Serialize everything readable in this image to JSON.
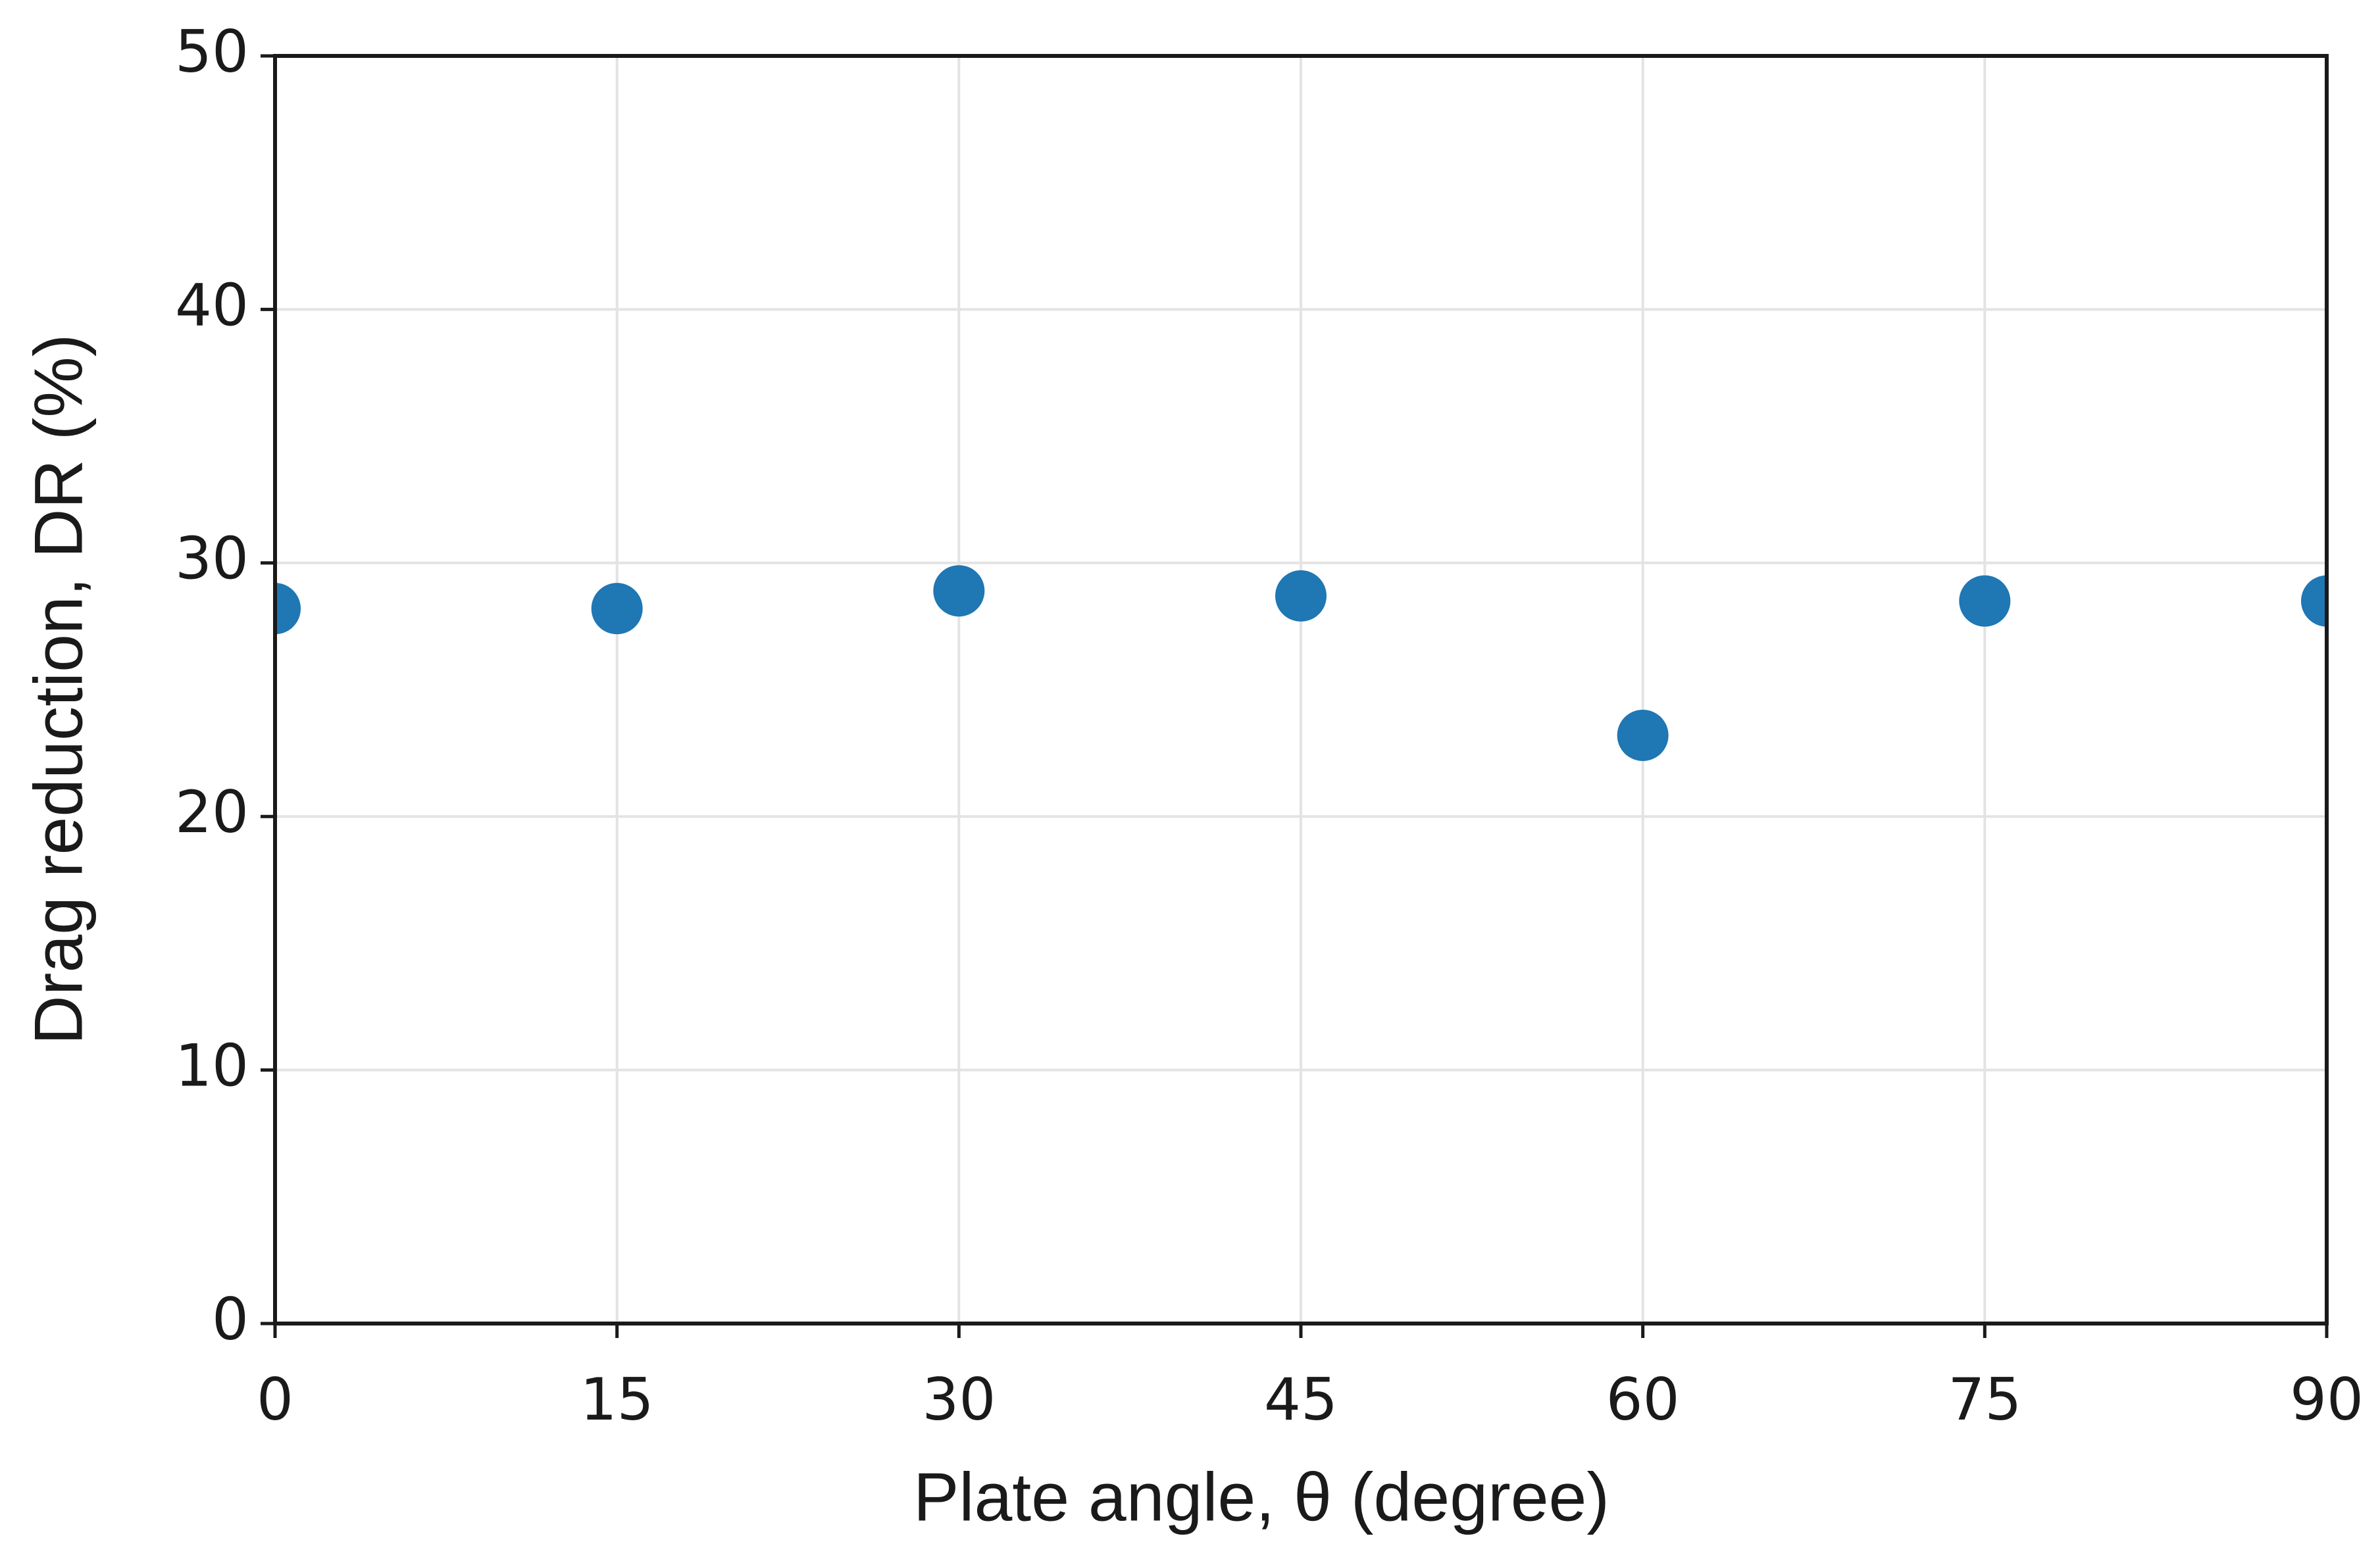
{
  "chart_data": {
    "type": "scatter",
    "x_label": "Plate angle, θ (degree)",
    "y_label": "Drag reduction, DR (%)",
    "series": [
      {
        "color": "#1f77b4",
        "x": [
          0,
          15,
          30,
          45,
          60,
          75,
          90
        ],
        "values": [
          28.2,
          28.2,
          28.9,
          28.7,
          23.2,
          28.5,
          28.5
        ]
      }
    ],
    "xlim": [
      0,
      90
    ],
    "xticks": [
      0,
      15,
      30,
      45,
      60,
      75,
      90
    ],
    "ylim": [
      0,
      50
    ],
    "yticks": [
      0,
      10,
      20,
      30,
      40,
      50
    ],
    "grid": true
  }
}
